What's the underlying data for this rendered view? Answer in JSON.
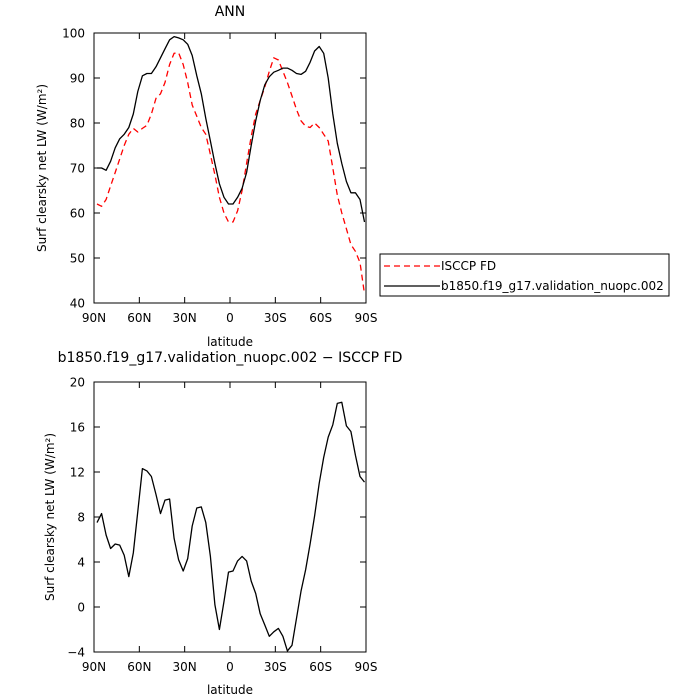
{
  "chart_data": [
    {
      "type": "line",
      "title": "ANN",
      "xlabel": "latitude",
      "ylabel": "Surf clearsky net LW (W/m²)",
      "xlim": [
        90,
        -90
      ],
      "ylim": [
        40,
        100
      ],
      "x_tick_values": [
        90,
        60,
        30,
        0,
        -30,
        -60,
        -90
      ],
      "x_tick_labels": [
        "90N",
        "60N",
        "30N",
        "0",
        "30S",
        "60S",
        "90S"
      ],
      "y_tick_values": [
        40,
        50,
        60,
        70,
        80,
        90,
        100
      ],
      "y_tick_labels": [
        "40",
        "50",
        "60",
        "70",
        "80",
        "90",
        "100"
      ],
      "legend": "right",
      "series": [
        {
          "name": "ISCCP FD",
          "color": "#ff0000",
          "dash": "dashed",
          "x": [
            88,
            85,
            82,
            79,
            76,
            73,
            70,
            67,
            64,
            61,
            58,
            55,
            52,
            49,
            46,
            43,
            40,
            37,
            34,
            31,
            28,
            25,
            22,
            19,
            16,
            13,
            10,
            7,
            4,
            1,
            -2,
            -5,
            -8,
            -11,
            -14,
            -17,
            -20,
            -23,
            -26,
            -29,
            -32,
            -35,
            -38,
            -41,
            -44,
            -47,
            -50,
            -53,
            -56,
            -59,
            -62,
            -65,
            -68,
            -71,
            -74,
            -77,
            -80,
            -83,
            -86,
            -89
          ],
          "y": [
            62,
            61.5,
            63,
            66,
            69,
            72,
            75,
            77.5,
            78.8,
            78,
            78.8,
            79.5,
            82,
            85.5,
            86.5,
            89,
            93,
            95.5,
            95.6,
            93,
            89,
            84,
            81.5,
            79,
            77.5,
            73,
            68.5,
            63.5,
            60,
            58,
            58,
            60.5,
            65,
            71,
            77,
            82,
            85,
            88,
            91.5,
            94.5,
            94,
            91.5,
            89,
            86,
            83,
            80.5,
            79.3,
            79,
            80,
            79,
            77.5,
            76,
            70,
            64,
            60,
            56.5,
            53,
            51.5,
            49,
            42
          ]
        },
        {
          "name": "b1850.f19_g17.validation_nuopc.002",
          "color": "#000000",
          "dash": "solid",
          "x": [
            88,
            85,
            82,
            79,
            76,
            73,
            70,
            67,
            64,
            61,
            58,
            55,
            52,
            49,
            46,
            43,
            40,
            37,
            34,
            31,
            28,
            25,
            22,
            19,
            16,
            13,
            10,
            7,
            4,
            1,
            -2,
            -5,
            -8,
            -11,
            -14,
            -17,
            -20,
            -23,
            -26,
            -29,
            -32,
            -35,
            -38,
            -41,
            -44,
            -47,
            -50,
            -53,
            -56,
            -59,
            -62,
            -65,
            -68,
            -71,
            -74,
            -77,
            -80,
            -83,
            -86,
            -89
          ],
          "y": [
            70,
            70,
            69.5,
            71.5,
            74.5,
            76.5,
            77.5,
            79,
            82,
            87,
            90.5,
            91,
            91,
            92.5,
            94.5,
            96.5,
            98.5,
            99.2,
            98.9,
            98.5,
            97.5,
            95,
            90.5,
            86.5,
            81,
            76,
            71,
            66.5,
            63.5,
            62,
            62,
            63.5,
            65.5,
            69,
            75,
            80.5,
            85,
            88.5,
            90.3,
            91.3,
            91.7,
            92.2,
            92.2,
            91.7,
            91,
            90.8,
            91.5,
            93.5,
            96,
            97,
            95.5,
            90,
            82,
            75.5,
            71,
            67,
            64.5,
            64.5,
            63,
            58
          ]
        }
      ]
    },
    {
      "type": "line",
      "title": "b1850.f19_g17.validation_nuopc.002 − ISCCP FD",
      "xlabel": "latitude",
      "ylabel": "Surf clearsky net LW (W/m²)",
      "xlim": [
        90,
        -90
      ],
      "ylim": [
        -4,
        20
      ],
      "x_tick_values": [
        90,
        60,
        30,
        0,
        -30,
        -60,
        -90
      ],
      "x_tick_labels": [
        "90N",
        "60N",
        "30N",
        "0",
        "30S",
        "60S",
        "90S"
      ],
      "y_tick_values": [
        -4,
        0,
        4,
        8,
        12,
        16,
        20
      ],
      "y_tick_labels": [
        "−4",
        "0",
        "4",
        "8",
        "12",
        "16",
        "20"
      ],
      "series": [
        {
          "color": "#000000",
          "dash": "solid",
          "x": [
            88,
            85,
            82,
            79,
            76,
            73,
            70,
            67,
            64,
            61,
            58,
            55,
            52,
            49,
            46,
            43,
            40,
            37,
            34,
            31,
            28,
            25,
            22,
            19,
            16,
            13,
            10,
            7,
            4,
            1,
            -2,
            -5,
            -8,
            -11,
            -14,
            -17,
            -20,
            -23,
            -26,
            -29,
            -32,
            -35,
            -38,
            -41,
            -44,
            -47,
            -50,
            -53,
            -56,
            -59,
            -62,
            -65,
            -68,
            -71,
            -74,
            -77,
            -80,
            -83,
            -86,
            -89
          ],
          "y": [
            7.5,
            8.3,
            6.4,
            5.2,
            5.6,
            5.5,
            4.6,
            2.7,
            4.8,
            8.5,
            12.3,
            12.1,
            11.6,
            10,
            8.3,
            9.5,
            9.6,
            6.1,
            4.2,
            3.2,
            4.3,
            7.2,
            8.8,
            8.9,
            7.5,
            4.5,
            0.2,
            -2,
            0.5,
            3.1,
            3.2,
            4.1,
            4.5,
            4.1,
            2.3,
            1.2,
            -0.6,
            -1.6,
            -2.6,
            -2.2,
            -1.9,
            -2.6,
            -3.9,
            -3.4,
            -1,
            1.4,
            3.3,
            5.6,
            8.1,
            11,
            13.3,
            15.1,
            16.2,
            18.1,
            18.2,
            16.1,
            15.6,
            13.5,
            11.6,
            11.1
          ]
        }
      ]
    }
  ]
}
